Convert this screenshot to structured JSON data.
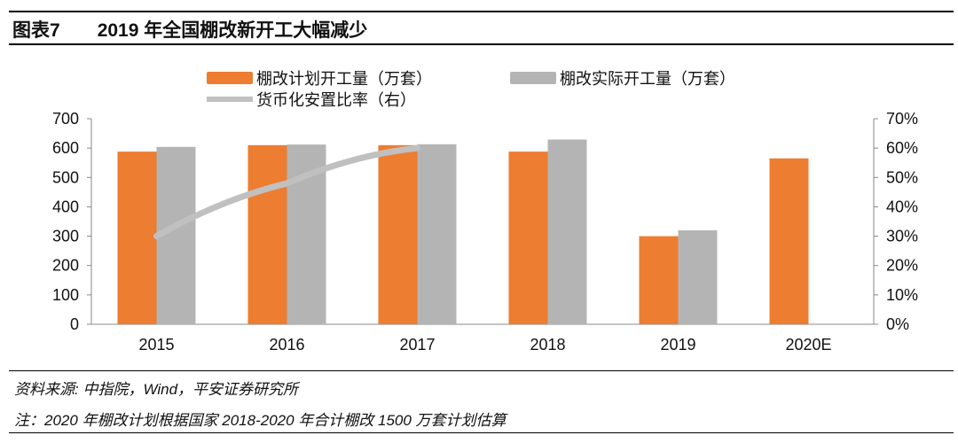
{
  "header": {
    "label": "图表7",
    "title": "2019 年全国棚改新开工大幅减少"
  },
  "chart_data": {
    "type": "bar",
    "categories": [
      "2015",
      "2016",
      "2017",
      "2018",
      "2019",
      "2020E"
    ],
    "series": [
      {
        "name": "棚改计划开工量（万套）",
        "type": "bar",
        "axis": "left",
        "color": "#ED7D31",
        "values": [
          588,
          610,
          610,
          588,
          300,
          565
        ]
      },
      {
        "name": "棚改实际开工量（万套）",
        "type": "bar",
        "axis": "left",
        "color": "#B4B4B4",
        "values": [
          604,
          612,
          613,
          629,
          320,
          null
        ]
      },
      {
        "name": "货币化安置比率（右）",
        "type": "line",
        "axis": "right",
        "color": "#C0C0C0",
        "values": [
          0.3,
          0.48,
          0.6,
          null,
          null,
          null
        ]
      }
    ],
    "ylim": [
      0,
      700
    ],
    "yticks": [
      "0",
      "100",
      "200",
      "300",
      "400",
      "500",
      "600",
      "700"
    ],
    "y2lim": [
      0,
      0.7
    ],
    "y2ticks": [
      "0%",
      "10%",
      "20%",
      "30%",
      "40%",
      "50%",
      "60%",
      "70%"
    ],
    "grid": false,
    "legend": "top"
  },
  "footer": {
    "source": "资料来源: 中指院，Wind，平安证券研究所",
    "note": "注：2020 年棚改计划根据国家 2018-2020 年合计棚改 1500 万套计划估算"
  }
}
